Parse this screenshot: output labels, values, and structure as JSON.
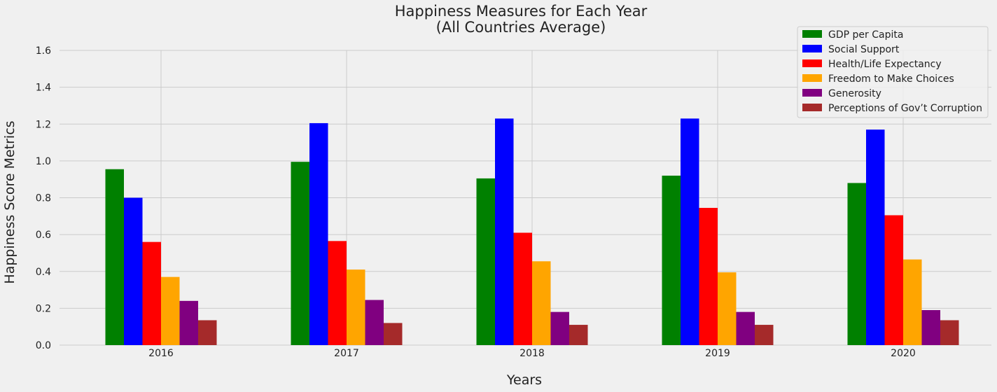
{
  "chart_data": {
    "type": "bar",
    "title": "Happiness Measures for Each Year",
    "subtitle": "(All Countries Average)",
    "xlabel": "Years",
    "ylabel": "Happiness Score Metrics",
    "ylim": [
      0,
      1.6
    ],
    "yticks": [
      "0.0",
      "0.2",
      "0.4",
      "0.6",
      "0.8",
      "1.0",
      "1.2",
      "1.4",
      "1.6"
    ],
    "categories": [
      "2016",
      "2017",
      "2018",
      "2019",
      "2020"
    ],
    "grid": true,
    "legend_position": "top-right",
    "series": [
      {
        "name": "GDP per Capita",
        "color": "#008000",
        "values": [
          0.955,
          0.995,
          0.905,
          0.92,
          0.88
        ]
      },
      {
        "name": "Social Support",
        "color": "#0000ff",
        "values": [
          0.8,
          1.205,
          1.23,
          1.23,
          1.17
        ]
      },
      {
        "name": "Health/Life Expectancy",
        "color": "#ff0000",
        "values": [
          0.56,
          0.565,
          0.61,
          0.745,
          0.705
        ]
      },
      {
        "name": "Freedom to Make Choices",
        "color": "#ffa500",
        "values": [
          0.37,
          0.41,
          0.455,
          0.395,
          0.465
        ]
      },
      {
        "name": "Generosity",
        "color": "#800080",
        "values": [
          0.24,
          0.245,
          0.18,
          0.18,
          0.19
        ]
      },
      {
        "name": "Perceptions of Gov’t Corruption",
        "color": "#a52a2a",
        "values": [
          0.135,
          0.12,
          0.11,
          0.11,
          0.135
        ]
      }
    ]
  }
}
